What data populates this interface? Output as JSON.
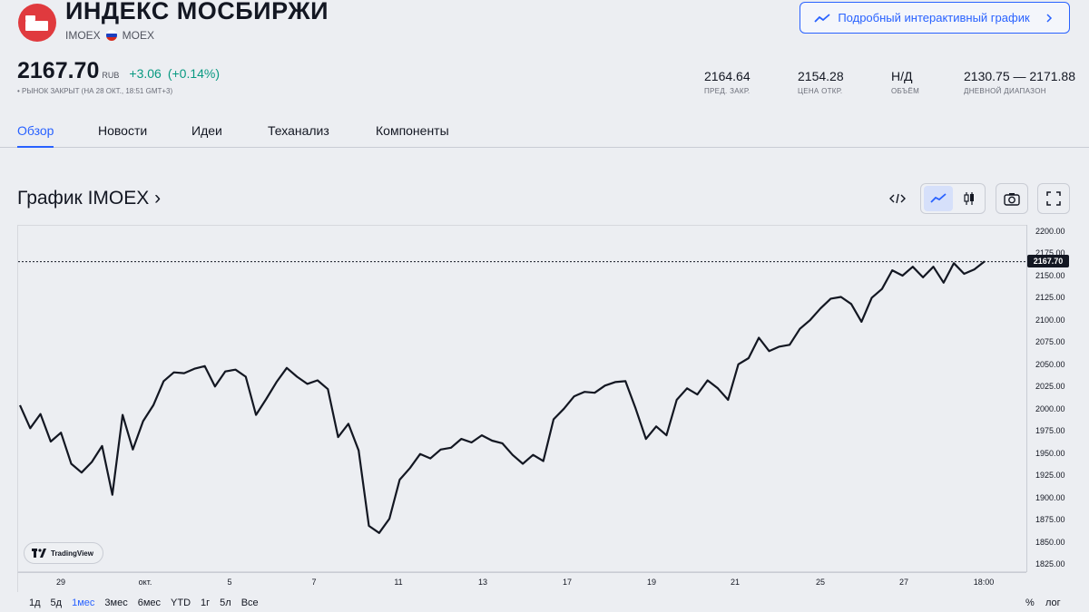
{
  "header": {
    "title": "ИНДЕКС МОСБИРЖИ",
    "ticker": "IMOEX",
    "exchange": "MOEX",
    "interactive_button": "Подробный интерактивный график"
  },
  "quote": {
    "price": "2167.70",
    "currency": "RUB",
    "change": "+3.06",
    "change_pct": "(+0.14%)",
    "status": "• РЫНОК ЗАКРЫТ (НА 28 ОКТ., 18:51 GMT+3)"
  },
  "stats": [
    {
      "value": "2164.64",
      "label": "ПРЕД. ЗАКР."
    },
    {
      "value": "2154.28",
      "label": "ЦЕНА ОТКР."
    },
    {
      "value": "Н/Д",
      "label": "ОБЪЁМ"
    },
    {
      "value": "2130.75 — 2171.88",
      "label": "ДНЕВНОЙ ДИАПАЗОН"
    }
  ],
  "tabs": [
    "Обзор",
    "Новости",
    "Идеи",
    "Теханализ",
    "Компоненты"
  ],
  "chart_section": {
    "title": "График IMOEX ›",
    "tools": [
      "embed-code",
      "line-chart",
      "candle-chart",
      "snapshot",
      "fullscreen"
    ],
    "watermark": "TradingView",
    "ranges": [
      "1д",
      "5д",
      "1мес",
      "3мес",
      "6мес",
      "YTD",
      "1г",
      "5л",
      "Все"
    ],
    "active_range": "1мес",
    "percent_label": "%",
    "log_label": "лог"
  },
  "colors": {
    "accent": "#2962ff",
    "positive": "#089981",
    "line": "#131722",
    "brand": "#e03a3e"
  },
  "chart_data": {
    "type": "line",
    "y_ticks": [
      "2200.00",
      "2175.00",
      "2150.00",
      "2125.00",
      "2100.00",
      "2075.00",
      "2050.00",
      "2025.00",
      "2000.00",
      "1975.00",
      "1950.00",
      "1925.00",
      "1900.00",
      "1875.00",
      "1850.00",
      "1825.00"
    ],
    "x_ticks": [
      "29",
      "окт.",
      "5",
      "7",
      "11",
      "13",
      "17",
      "19",
      "21",
      "25",
      "27",
      "18:00"
    ],
    "ylim": [
      1825,
      2200
    ],
    "last_value_label": "2167.70",
    "values": [
      2006,
      1980,
      1996,
      1965,
      1975,
      1940,
      1930,
      1942,
      1960,
      1905,
      1995,
      1956,
      1988,
      2006,
      2033,
      2043,
      2042,
      2047,
      2050,
      2027,
      2044,
      2046,
      2038,
      1995,
      2013,
      2032,
      2048,
      2038,
      2030,
      2034,
      2024,
      1970,
      1985,
      1955,
      1870,
      1862,
      1878,
      1922,
      1935,
      1951,
      1946,
      1956,
      1958,
      1968,
      1964,
      1972,
      1966,
      1963,
      1950,
      1940,
      1950,
      1943,
      1990,
      2002,
      2016,
      2021,
      2020,
      2028,
      2032,
      2033,
      2002,
      1968,
      1982,
      1972,
      2012,
      2025,
      2018,
      2034,
      2025,
      2012,
      2052,
      2059,
      2082,
      2067,
      2072,
      2074,
      2092,
      2102,
      2115,
      2126,
      2128,
      2120,
      2100,
      2127,
      2137,
      2158,
      2152,
      2162,
      2150,
      2162,
      2144,
      2166,
      2154,
      2159,
      2168
    ]
  }
}
